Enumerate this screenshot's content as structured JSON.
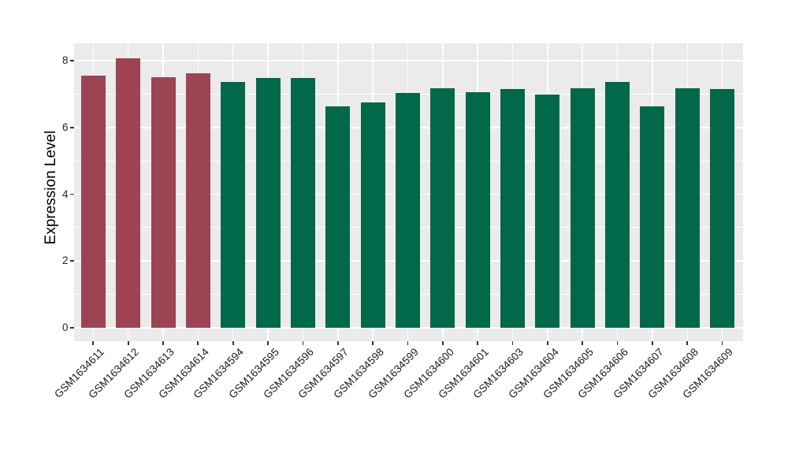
{
  "chart_data": {
    "type": "bar",
    "title": "",
    "xlabel": "",
    "ylabel": "Expression Level",
    "categories": [
      "GSM1634611",
      "GSM1634612",
      "GSM1634613",
      "GSM1634614",
      "GSM1634594",
      "GSM1634595",
      "GSM1634596",
      "GSM1634597",
      "GSM1634598",
      "GSM1634599",
      "GSM1634600",
      "GSM1634601",
      "GSM1634603",
      "GSM1634604",
      "GSM1634605",
      "GSM1634606",
      "GSM1634607",
      "GSM1634608",
      "GSM1634609"
    ],
    "values": [
      7.55,
      8.08,
      7.5,
      7.64,
      7.36,
      7.49,
      7.49,
      6.63,
      6.76,
      7.03,
      7.17,
      7.07,
      7.15,
      7.0,
      7.17,
      7.36,
      6.64,
      7.17,
      7.15
    ],
    "groups": [
      "group1",
      "group1",
      "group1",
      "group1",
      "group2",
      "group2",
      "group2",
      "group2",
      "group2",
      "group2",
      "group2",
      "group2",
      "group2",
      "group2",
      "group2",
      "group2",
      "group2",
      "group2",
      "group2"
    ],
    "group_colors": {
      "group1": "#9C4453",
      "group2": "#01684A"
    },
    "yticks": [
      0,
      2,
      4,
      6,
      8
    ],
    "yticks_minor": [
      1,
      3,
      5,
      7
    ],
    "ylim": [
      -0.41,
      8.53
    ],
    "grid": "major+minor horizontal, major vertical at category centers",
    "legend": "none",
    "panel_bg": "#EBEBEB",
    "grid_color": "#FFFFFF",
    "axis_text_color": "#262626"
  }
}
